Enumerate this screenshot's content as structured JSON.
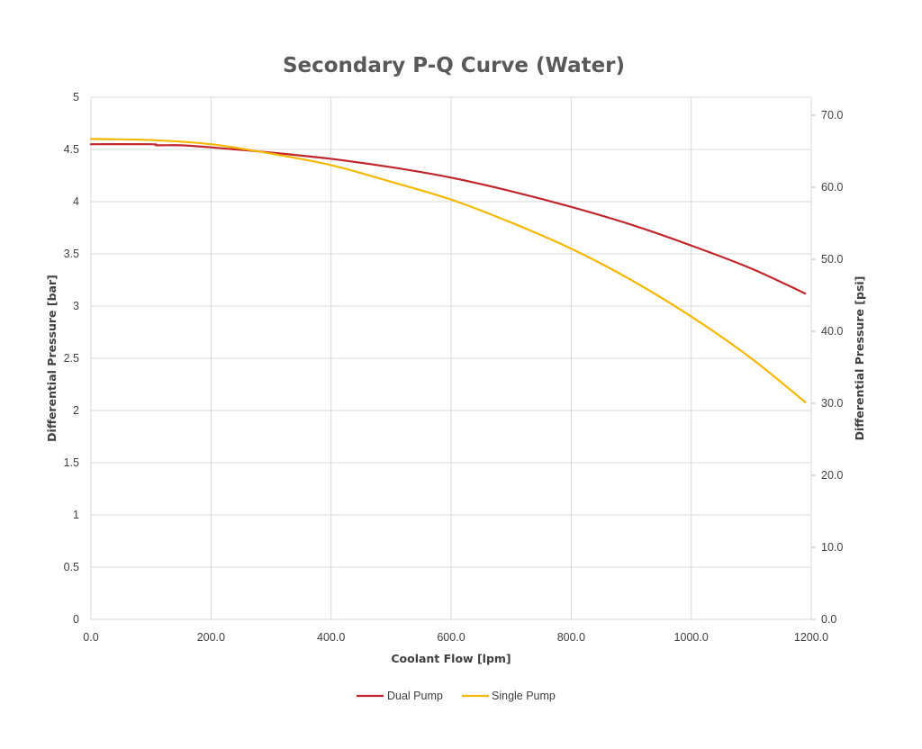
{
  "chart_data": {
    "type": "line",
    "title": "Secondary P-Q Curve (Water)",
    "xlabel": "Coolant Flow [lpm]",
    "ylabel": "Differential Pressure [bar]",
    "y2label": "Differential Pressure [psi]",
    "xlim": [
      0,
      1200
    ],
    "ylim": [
      0,
      5
    ],
    "y2lim": [
      0,
      72.5
    ],
    "x_ticks": [
      0,
      200,
      400,
      600,
      800,
      1000,
      1200
    ],
    "x_tick_labels": [
      "0.0",
      "200.0",
      "400.0",
      "600.0",
      "800.0",
      "1000.0",
      "1200.0"
    ],
    "y_ticks": [
      0,
      0.5,
      1,
      1.5,
      2,
      2.5,
      3,
      3.5,
      4,
      4.5,
      5
    ],
    "y_tick_labels": [
      "0",
      "0.5",
      "1",
      "1.5",
      "2",
      "2.5",
      "3",
      "3.5",
      "4",
      "4.5",
      "5"
    ],
    "y2_ticks": [
      0,
      10,
      20,
      30,
      40,
      50,
      60,
      70
    ],
    "y2_tick_labels": [
      "0.0",
      "10.0",
      "20.0",
      "30.0",
      "40.0",
      "50.0",
      "60.0",
      "70.0"
    ],
    "grid": true,
    "legend_position": "bottom",
    "series": [
      {
        "name": "Dual Pump",
        "color": "#c0272d",
        "x": [
          0,
          100,
          110,
          150,
          200,
          300,
          400,
          500,
          600,
          700,
          800,
          900,
          1000,
          1100,
          1190
        ],
        "y": [
          4.55,
          4.55,
          4.54,
          4.54,
          4.52,
          4.47,
          4.41,
          4.33,
          4.23,
          4.1,
          3.95,
          3.78,
          3.58,
          3.36,
          3.12
        ]
      },
      {
        "name": "Single Pump",
        "color": "#f5b800",
        "x": [
          0,
          100,
          200,
          300,
          400,
          500,
          600,
          700,
          800,
          900,
          1000,
          1100,
          1190
        ],
        "y": [
          4.6,
          4.59,
          4.55,
          4.46,
          4.35,
          4.19,
          4.02,
          3.8,
          3.55,
          3.25,
          2.9,
          2.5,
          2.08
        ]
      }
    ]
  }
}
